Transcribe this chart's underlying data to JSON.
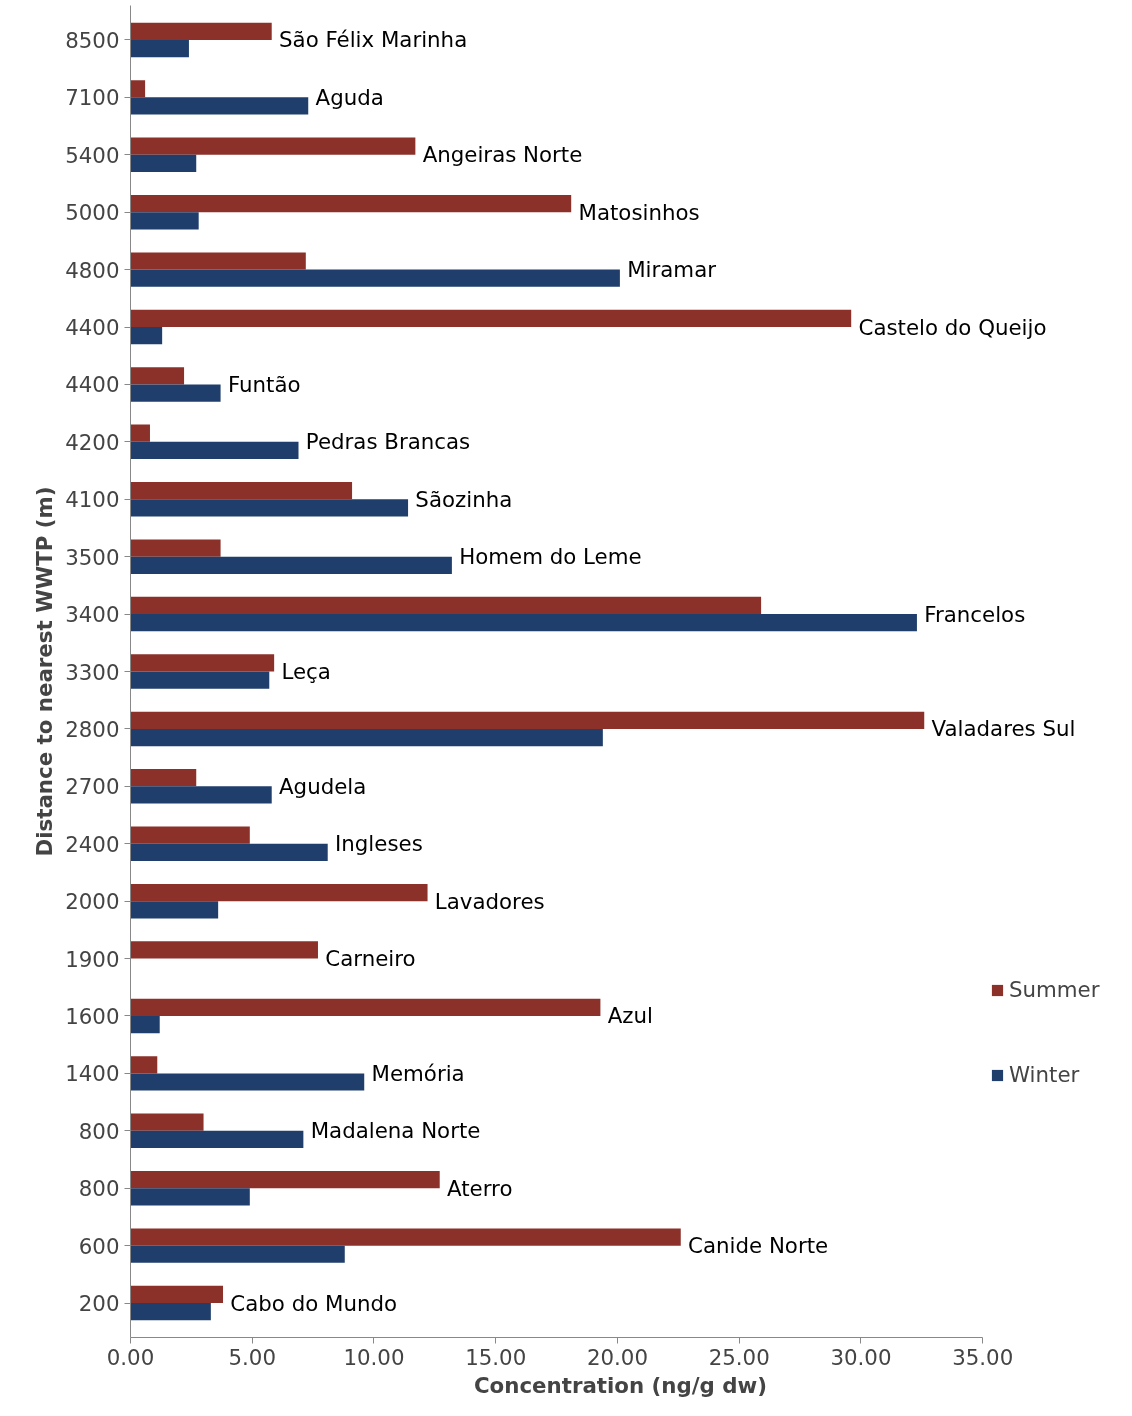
{
  "chart_data": {
    "type": "bar",
    "orientation": "horizontal",
    "xlabel": "Concentration (ng/g dw)",
    "ylabel": "Distance to nearest WWTP (m)",
    "categories": [
      "8500",
      "7100",
      "5400",
      "5000",
      "4800",
      "4400",
      "4400",
      "4200",
      "4100",
      "3500",
      "3400",
      "3300",
      "2800",
      "2700",
      "2400",
      "2000",
      "1900",
      "1600",
      "1400",
      "800",
      "800",
      "600",
      "200"
    ],
    "series": [
      {
        "name": "Summer",
        "color": "#8b3129",
        "values": [
          5.8,
          0.6,
          11.7,
          18.1,
          7.2,
          29.6,
          2.2,
          0.8,
          9.1,
          3.7,
          25.9,
          5.9,
          32.6,
          2.7,
          4.9,
          12.2,
          7.7,
          19.3,
          1.1,
          3.0,
          12.7,
          22.6,
          3.8
        ]
      },
      {
        "name": "Winter",
        "color": "#1f3e6b",
        "values": [
          2.4,
          7.3,
          2.7,
          2.8,
          20.1,
          1.3,
          3.7,
          6.9,
          11.4,
          13.2,
          32.3,
          5.7,
          19.4,
          5.8,
          8.1,
          3.6,
          null,
          1.2,
          9.6,
          7.1,
          4.9,
          8.8,
          3.3
        ]
      }
    ],
    "annotations": [
      "São Félix Marinha",
      "Aguda",
      "Angeiras Norte",
      "Matosinhos",
      "Miramar",
      "Castelo do Queijo",
      "Funtão",
      "Pedras Brancas",
      "Sãozinha",
      "Homem do Leme",
      "Francelos",
      "Leça",
      "Valadares Sul",
      "Agudela",
      "Ingleses",
      "Lavadores",
      "Carneiro",
      "Azul",
      "Memória",
      "Madalena Norte",
      "Aterro",
      "Canide Norte",
      "Cabo do Mundo"
    ],
    "xlim": [
      0,
      35
    ],
    "xticks": [
      {
        "value": 0,
        "label": "0.00"
      },
      {
        "value": 5,
        "label": "5.00"
      },
      {
        "value": 10,
        "label": "10.00"
      },
      {
        "value": 15,
        "label": "15.00"
      },
      {
        "value": 20,
        "label": "20.00"
      },
      {
        "value": 25,
        "label": "25.00"
      },
      {
        "value": 30,
        "label": "30.00"
      },
      {
        "value": 35,
        "label": "35.00"
      }
    ],
    "grid": false,
    "legend": "right"
  }
}
